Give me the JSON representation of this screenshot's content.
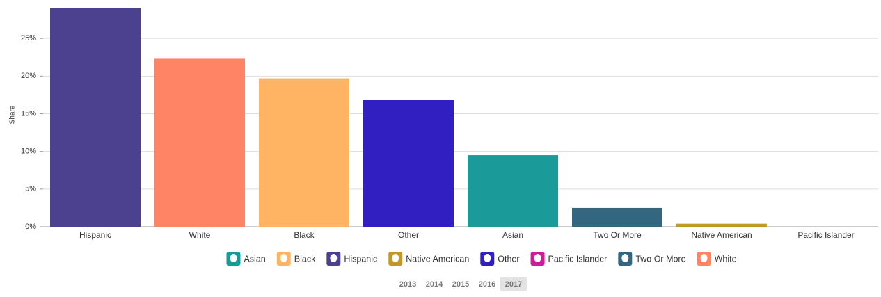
{
  "chart_data": {
    "type": "bar",
    "y_label": "Share",
    "categories": [
      "Hispanic",
      "White",
      "Black",
      "Other",
      "Asian",
      "Two Or More",
      "Native American",
      "Pacific Islander"
    ],
    "values": [
      29,
      22.3,
      19.7,
      16.8,
      9.5,
      2.5,
      0.4,
      0
    ],
    "ylim": [
      0,
      30
    ],
    "yticks": [
      {
        "value": 0,
        "label": "0%"
      },
      {
        "value": 5,
        "label": "5%"
      },
      {
        "value": 10,
        "label": "10%"
      },
      {
        "value": 15,
        "label": "15%"
      },
      {
        "value": 20,
        "label": "20%"
      },
      {
        "value": 25,
        "label": "25%"
      }
    ],
    "grid": true,
    "legend": [
      {
        "name": "Asian",
        "color": "#1a9a99"
      },
      {
        "name": "Black",
        "color": "#ffb463"
      },
      {
        "name": "Hispanic",
        "color": "#4b418e"
      },
      {
        "name": "Native American",
        "color": "#bf9a25"
      },
      {
        "name": "Other",
        "color": "#321fc2"
      },
      {
        "name": "Pacific Islander",
        "color": "#cc1d96"
      },
      {
        "name": "Two Or More",
        "color": "#33677f"
      },
      {
        "name": "White",
        "color": "#ff8466"
      }
    ],
    "years": [
      "2013",
      "2014",
      "2015",
      "2016",
      "2017"
    ],
    "selected_year_index": 4
  }
}
